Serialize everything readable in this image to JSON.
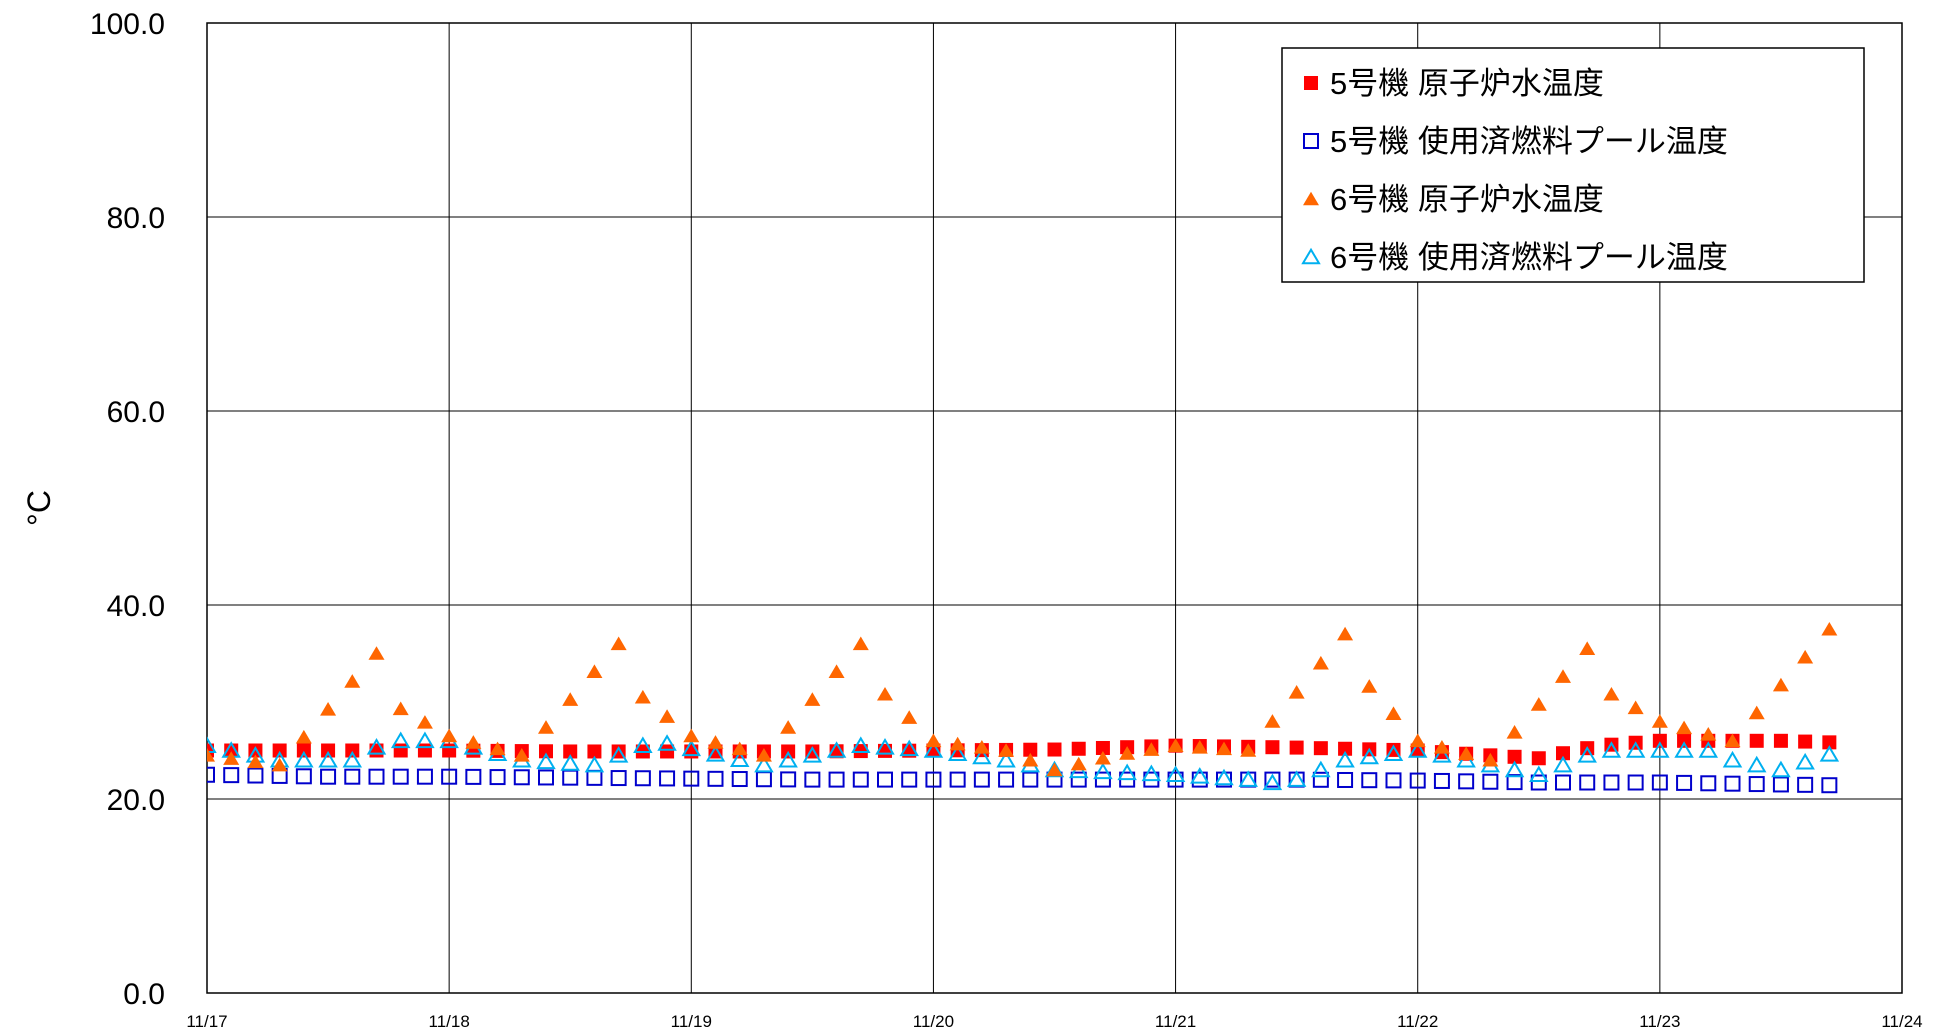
{
  "chart_data": {
    "type": "scatter",
    "ylabel": "°C",
    "ylim": [
      0,
      100
    ],
    "y_ticks": [
      "0.0",
      "20.0",
      "40.0",
      "60.0",
      "80.0",
      "100.0"
    ],
    "x_ticks": [
      "11/17",
      "11/18",
      "11/19",
      "11/20",
      "11/21",
      "11/22",
      "11/23",
      "11/24"
    ],
    "x_range_days": [
      0,
      7
    ],
    "grid": true,
    "legend_position": "top-right",
    "series": [
      {
        "name": "5号機 原子炉水温度",
        "marker": "filled-square",
        "color": "#ff0000",
        "x": [
          0,
          0.5,
          1,
          1.5,
          2,
          2.5,
          3,
          3.5,
          4,
          4.5,
          5,
          5.3,
          5.5,
          5.75,
          6,
          6.25,
          6.5,
          6.75
        ],
        "y": [
          25,
          25,
          25,
          24.9,
          24.9,
          24.9,
          25,
          25.1,
          25.5,
          25.3,
          25.0,
          24.5,
          24.2,
          25.5,
          26,
          26,
          26,
          25.8
        ]
      },
      {
        "name": "5号機 使用済燃料プール温度",
        "marker": "open-square",
        "color": "#0000cc",
        "x": [
          0,
          0.5,
          1,
          1.5,
          2,
          2.5,
          3,
          3.5,
          4,
          4.5,
          5,
          5.5,
          6,
          6.5,
          6.75
        ],
        "y": [
          22.5,
          22.3,
          22.3,
          22.2,
          22.1,
          22.0,
          22.0,
          22.0,
          22.0,
          22.0,
          21.9,
          21.7,
          21.7,
          21.5,
          21.4
        ]
      },
      {
        "name": "6号機 原子炉水温度",
        "marker": "filled-triangle",
        "color": "#ff6600",
        "x": [
          0,
          0.3,
          0.7,
          0.75,
          1.0,
          1.3,
          1.7,
          1.75,
          2.0,
          2.3,
          2.7,
          2.75,
          3.0,
          3.3,
          3.5,
          3.75,
          4.0,
          4.3,
          4.7,
          4.75,
          5.0,
          5.3,
          5.7,
          5.75,
          6.0,
          6.3,
          6.7,
          6.75
        ],
        "y": [
          24.5,
          23.5,
          35,
          30,
          26.5,
          24.5,
          36,
          31.5,
          26.5,
          24.5,
          36,
          32,
          26,
          25,
          23,
          24.5,
          25.5,
          25,
          37,
          33,
          26,
          24,
          35.5,
          31.5,
          28,
          26,
          37.5,
          33.5
        ]
      },
      {
        "name": "6号機 使用済燃料プール温度",
        "marker": "open-triangle",
        "color": "#00b0f0",
        "x": [
          0,
          0.3,
          0.6,
          0.75,
          1.0,
          1.3,
          1.6,
          1.85,
          2.3,
          2.7,
          3.0,
          3.3,
          3.5,
          4.0,
          4.3,
          4.45,
          4.7,
          5.0,
          5.3,
          5.5,
          5.75,
          6.0,
          6.2,
          6.3,
          6.5,
          6.75
        ],
        "y": [
          25.5,
          24,
          24,
          26,
          26,
          24,
          23.5,
          26,
          23.5,
          25.5,
          25,
          24,
          23,
          22.5,
          22,
          21.5,
          24,
          25,
          23.5,
          22.5,
          25,
          25,
          25,
          24,
          23,
          25
        ]
      }
    ]
  }
}
